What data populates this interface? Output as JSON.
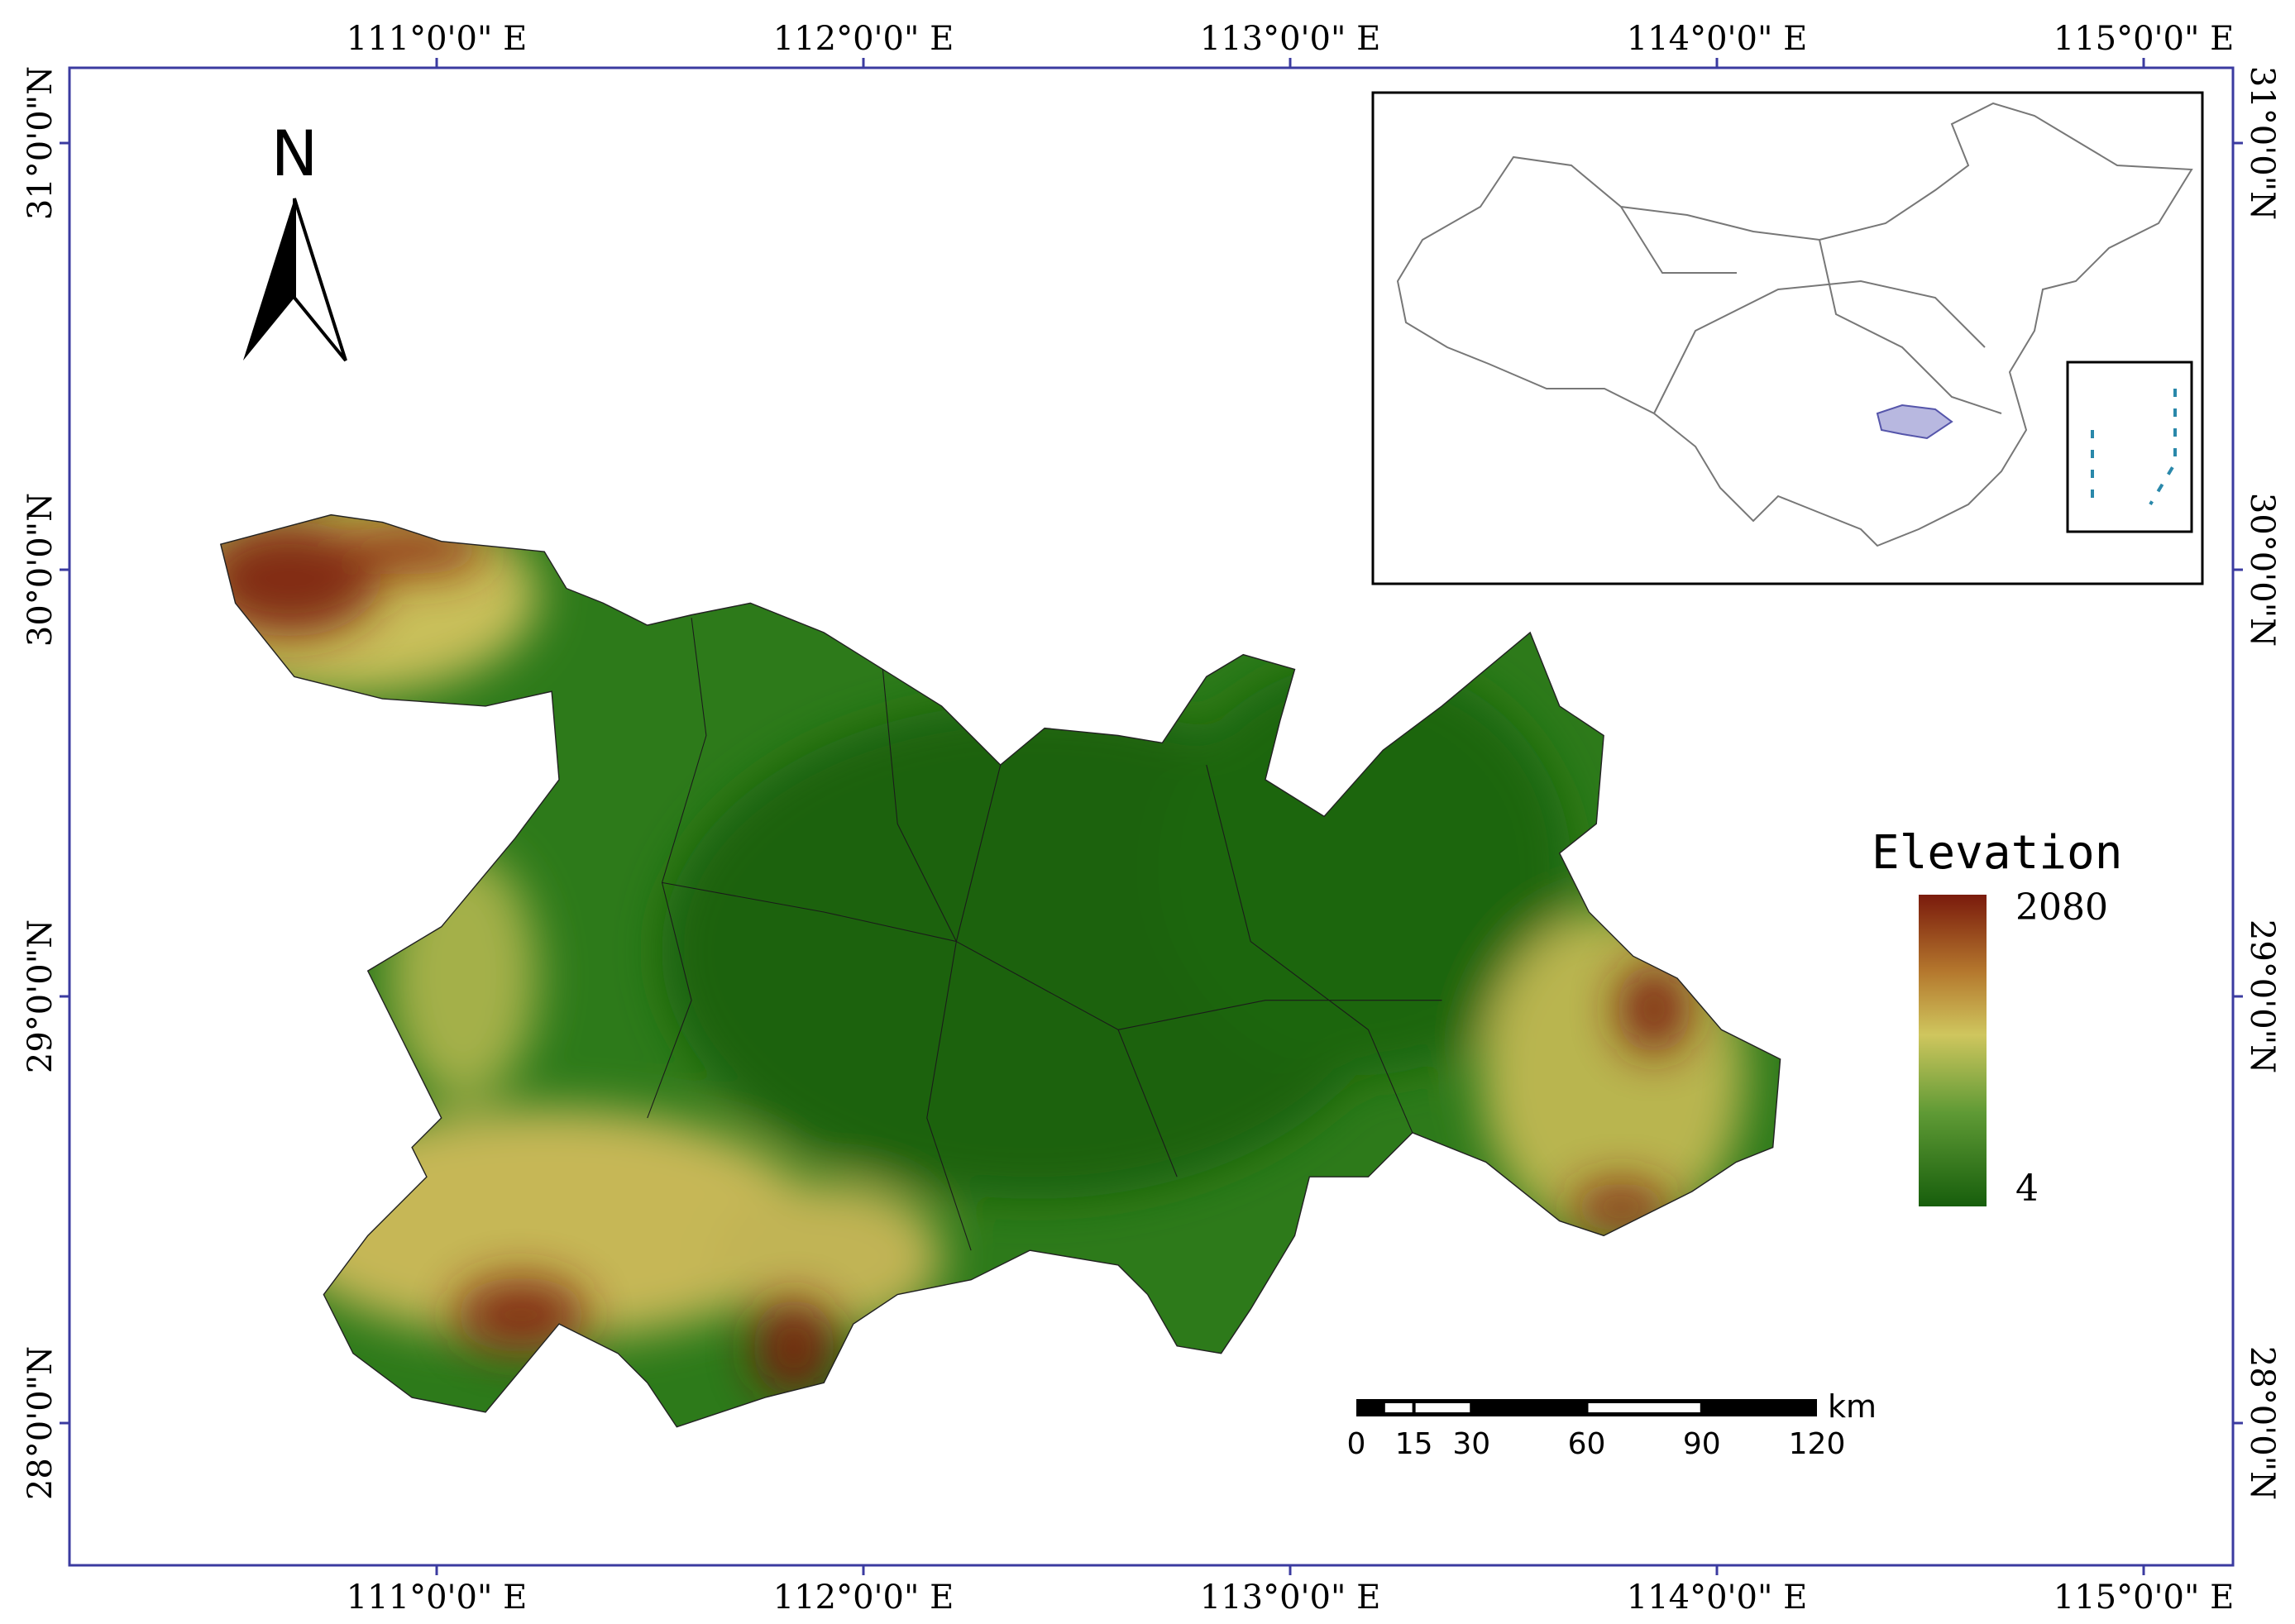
{
  "map": {
    "lon_labels": [
      "111°0'0\" E",
      "112°0'0\" E",
      "113°0'0\" E",
      "114°0'0\" E",
      "115°0'0\" E"
    ],
    "lat_labels": [
      "31°0'0\"N",
      "30°0'0\"N",
      "29°0'0\"N",
      "28°0'0\"N"
    ],
    "north_label": "N",
    "legend": {
      "title": "Elevation",
      "max": 2080,
      "min": 4
    },
    "scale_bar": {
      "unit": "km",
      "ticks": [
        0,
        15,
        30,
        60,
        90,
        120
      ]
    }
  }
}
